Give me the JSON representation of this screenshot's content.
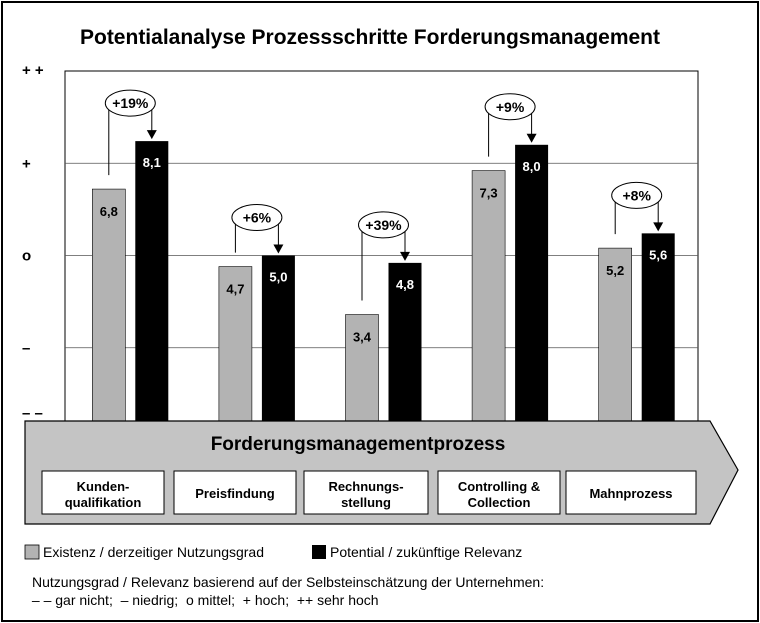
{
  "colors": {
    "existing": "#b3b3b3",
    "potential": "#000000",
    "arrow_fill": "#c4c4c4",
    "background": "#ffffff"
  },
  "chart_data": {
    "type": "bar",
    "title": "Potentialanalyse Prozessschritte Forderungsmanagement",
    "y_scale_labels": [
      "+ +",
      "+",
      "o",
      "–",
      "– –"
    ],
    "ylim": [
      0,
      10
    ],
    "grid": true,
    "categories": [
      "Kunden-\nqualifikation",
      "Preisfindung",
      "Rechnungs-\nstellung",
      "Controlling &\nCollection",
      "Mahnprozess"
    ],
    "series": [
      {
        "name": "Existenz / derzeitiger Nutzungsgrad",
        "values": [
          6.8,
          4.7,
          3.4,
          7.3,
          5.2
        ],
        "labels": [
          "6,8",
          "4,7",
          "3,4",
          "7,3",
          "5,2"
        ]
      },
      {
        "name": "Potential / zukünftige Relevanz",
        "values": [
          8.1,
          5.0,
          4.8,
          8.0,
          5.6
        ],
        "labels": [
          "8,1",
          "5,0",
          "4,8",
          "8,0",
          "5,6"
        ]
      }
    ],
    "deltas": [
      "+19%",
      "+6%",
      "+39%",
      "+9%",
      "+8%"
    ],
    "legend_position": "bottom-left"
  },
  "process": {
    "title": "Forderungsmanagementprozess"
  },
  "notes": {
    "line1": "Nutzungsgrad / Relevanz basierend auf der Selbsteinschätzung der Unternehmen:",
    "line2": " – – gar nicht;  – niedrig;  o mittel;  + hoch;  ++ sehr hoch"
  }
}
